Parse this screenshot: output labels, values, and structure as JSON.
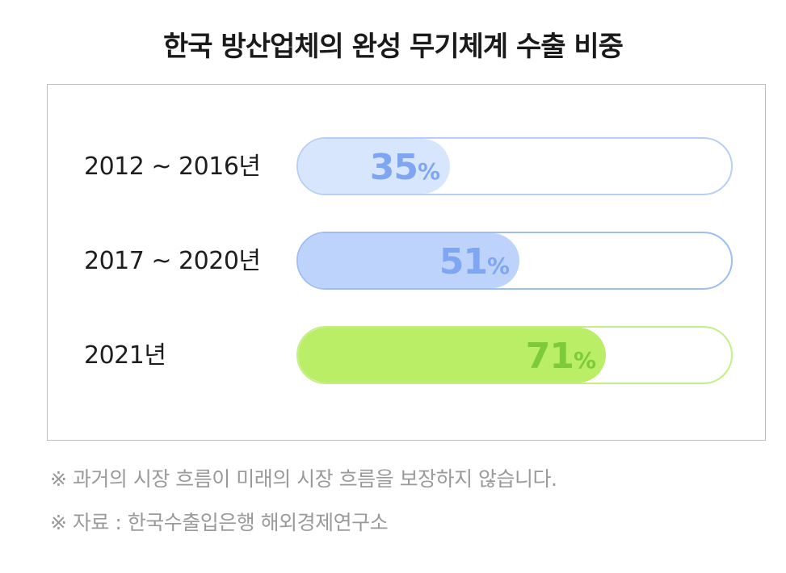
{
  "title": "한국 방산업체의 완성 무기체계 수출 비중",
  "chart_data": {
    "type": "bar",
    "orientation": "horizontal",
    "title": "한국 방산업체의 완성 무기체계 수출 비중",
    "categories": [
      "2012 ~ 2016년",
      "2017 ~ 2020년",
      "2021년"
    ],
    "values": [
      35,
      51,
      71
    ],
    "unit": "%",
    "xlim": [
      0,
      100
    ],
    "grid": false,
    "bar_colors": [
      {
        "fill": "#d8e6fd",
        "border": "#b7cff7",
        "text": "#7ea6f2"
      },
      {
        "fill": "#bdd3fb",
        "border": "#9dbdf4",
        "text": "#7ea6f2"
      },
      {
        "fill": "#b9ee66",
        "border": "#c5ef86",
        "text": "#7ccb3c"
      }
    ]
  },
  "notes": [
    "※ 과거의 시장 흐름이 미래의 시장 흐름을 보장하지 않습니다.",
    "※ 자료 : 한국수출입은행 해외경제연구소"
  ]
}
